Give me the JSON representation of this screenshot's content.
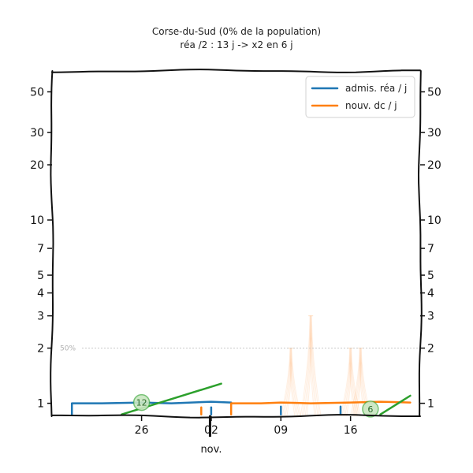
{
  "chart_data": {
    "type": "line",
    "title": "Corse-du-Sud (0% de la population)",
    "subtitle": "réa /2 : 13 j -> x2 en 6 j",
    "y_scale": "log",
    "ylim": [
      0.85,
      65
    ],
    "y_ticks": [
      1,
      2,
      3,
      4,
      5,
      7,
      10,
      20,
      30,
      50
    ],
    "xlim": [
      "2020-10-17",
      "2020-11-23"
    ],
    "x_ticks": [
      {
        "date": "2020-10-26",
        "label": "26"
      },
      {
        "date": "2020-11-02",
        "label": "02"
      },
      {
        "date": "2020-11-09",
        "label": "09"
      },
      {
        "date": "2020-11-16",
        "label": "16"
      }
    ],
    "month_label": {
      "date": "2020-11-02",
      "label": "nov."
    },
    "reference_line": {
      "value": 2,
      "label": "50%"
    },
    "legend": {
      "position": "top-right"
    },
    "series": [
      {
        "name": "admis. réa / j",
        "color": "#1f77b4",
        "segments": [
          [
            [
              "2020-10-19",
              0.87
            ],
            [
              "2020-10-19",
              1.0
            ],
            [
              "2020-10-22",
              1.0
            ],
            [
              "2020-10-26",
              1.01
            ],
            [
              "2020-10-29",
              1.0
            ],
            [
              "2020-11-02",
              1.02
            ],
            [
              "2020-11-04",
              1.01
            ]
          ],
          [
            [
              "2020-11-02",
              0.87
            ],
            [
              "2020-11-02",
              0.95
            ]
          ],
          [
            [
              "2020-11-09",
              0.87
            ],
            [
              "2020-11-09",
              0.96
            ]
          ],
          [
            [
              "2020-11-15",
              0.87
            ],
            [
              "2020-11-15",
              0.96
            ]
          ]
        ]
      },
      {
        "name": "nouv. dc / j",
        "color": "#ff7f0e",
        "segments": [
          [
            [
              "2020-11-01",
              0.87
            ],
            [
              "2020-11-01",
              0.95
            ]
          ],
          [
            [
              "2020-11-04",
              0.87
            ],
            [
              "2020-11-04",
              1.0
            ],
            [
              "2020-11-07",
              1.0
            ],
            [
              "2020-11-09",
              1.01
            ],
            [
              "2020-11-12",
              1.0
            ],
            [
              "2020-11-16",
              1.01
            ],
            [
              "2020-11-19",
              1.02
            ],
            [
              "2020-11-22",
              1.01
            ]
          ]
        ]
      },
      {
        "color": "#2ca02c",
        "segments": [
          [
            [
              "2020-10-24",
              0.87
            ],
            [
              "2020-11-03",
              1.28
            ]
          ],
          [
            [
              "2020-11-19",
              0.87
            ],
            [
              "2020-11-22",
              1.1
            ]
          ]
        ]
      }
    ],
    "markers": [
      {
        "date": "2020-10-26",
        "value": 1.01,
        "label": "12",
        "color": "#2ca02c"
      },
      {
        "date": "2020-11-18",
        "value": 0.93,
        "label": "6",
        "color": "#2ca02c"
      }
    ],
    "background_spikes": {
      "color": "#ff7f0e",
      "points": [
        [
          "2020-11-10",
          2.0
        ],
        [
          "2020-11-12",
          3.0
        ],
        [
          "2020-11-16",
          2.0
        ],
        [
          "2020-11-17",
          2.0
        ]
      ]
    },
    "short_bar": {
      "date": "2020-11-02",
      "from": 0.86,
      "to": 0.8
    }
  }
}
